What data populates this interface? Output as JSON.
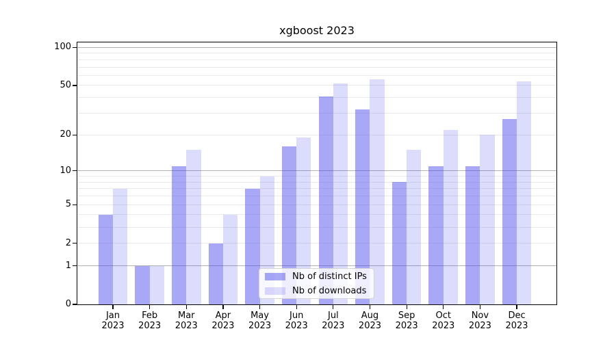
{
  "chart_data": {
    "type": "bar",
    "title": "xgboost 2023",
    "x_months": [
      "Jan",
      "Feb",
      "Mar",
      "Apr",
      "May",
      "Jun",
      "Jul",
      "Aug",
      "Sep",
      "Oct",
      "Nov",
      "Dec"
    ],
    "x_year": "2023",
    "categories": [
      "Jan 2023",
      "Feb 2023",
      "Mar 2023",
      "Apr 2023",
      "May 2023",
      "Jun 2023",
      "Jul 2023",
      "Aug 2023",
      "Sep 2023",
      "Oct 2023",
      "Nov 2023",
      "Dec 2023"
    ],
    "series": [
      {
        "name": "Nb of distinct IPs",
        "color": "rgba(70,70,238,0.47)",
        "values": [
          4,
          1,
          11,
          2,
          7,
          16,
          41,
          32,
          8,
          11,
          11,
          27
        ]
      },
      {
        "name": "Nb of downloads",
        "color": "rgba(70,70,238,0.19)",
        "values": [
          7,
          1,
          15,
          4,
          9,
          19,
          52,
          56,
          15,
          22,
          20,
          54
        ]
      }
    ],
    "yscale": "log1p",
    "ylim": [
      0,
      110
    ],
    "yticks": [
      0,
      1,
      2,
      5,
      10,
      20,
      50,
      100
    ],
    "grid_major_at": [
      1,
      10,
      100
    ],
    "grid_minor_at": [
      2,
      3,
      4,
      5,
      6,
      7,
      8,
      9,
      20,
      30,
      40,
      50,
      60,
      70,
      80,
      90
    ],
    "grid": "on",
    "legend_position": "inside lower-center",
    "colors": {
      "bar_dark": "rgba(70,70,238,0.47)",
      "bar_light": "rgba(70,70,238,0.19)",
      "grid_major": "#b0b0b0",
      "grid_minor": "#eaeaea",
      "axis": "#000000"
    }
  }
}
